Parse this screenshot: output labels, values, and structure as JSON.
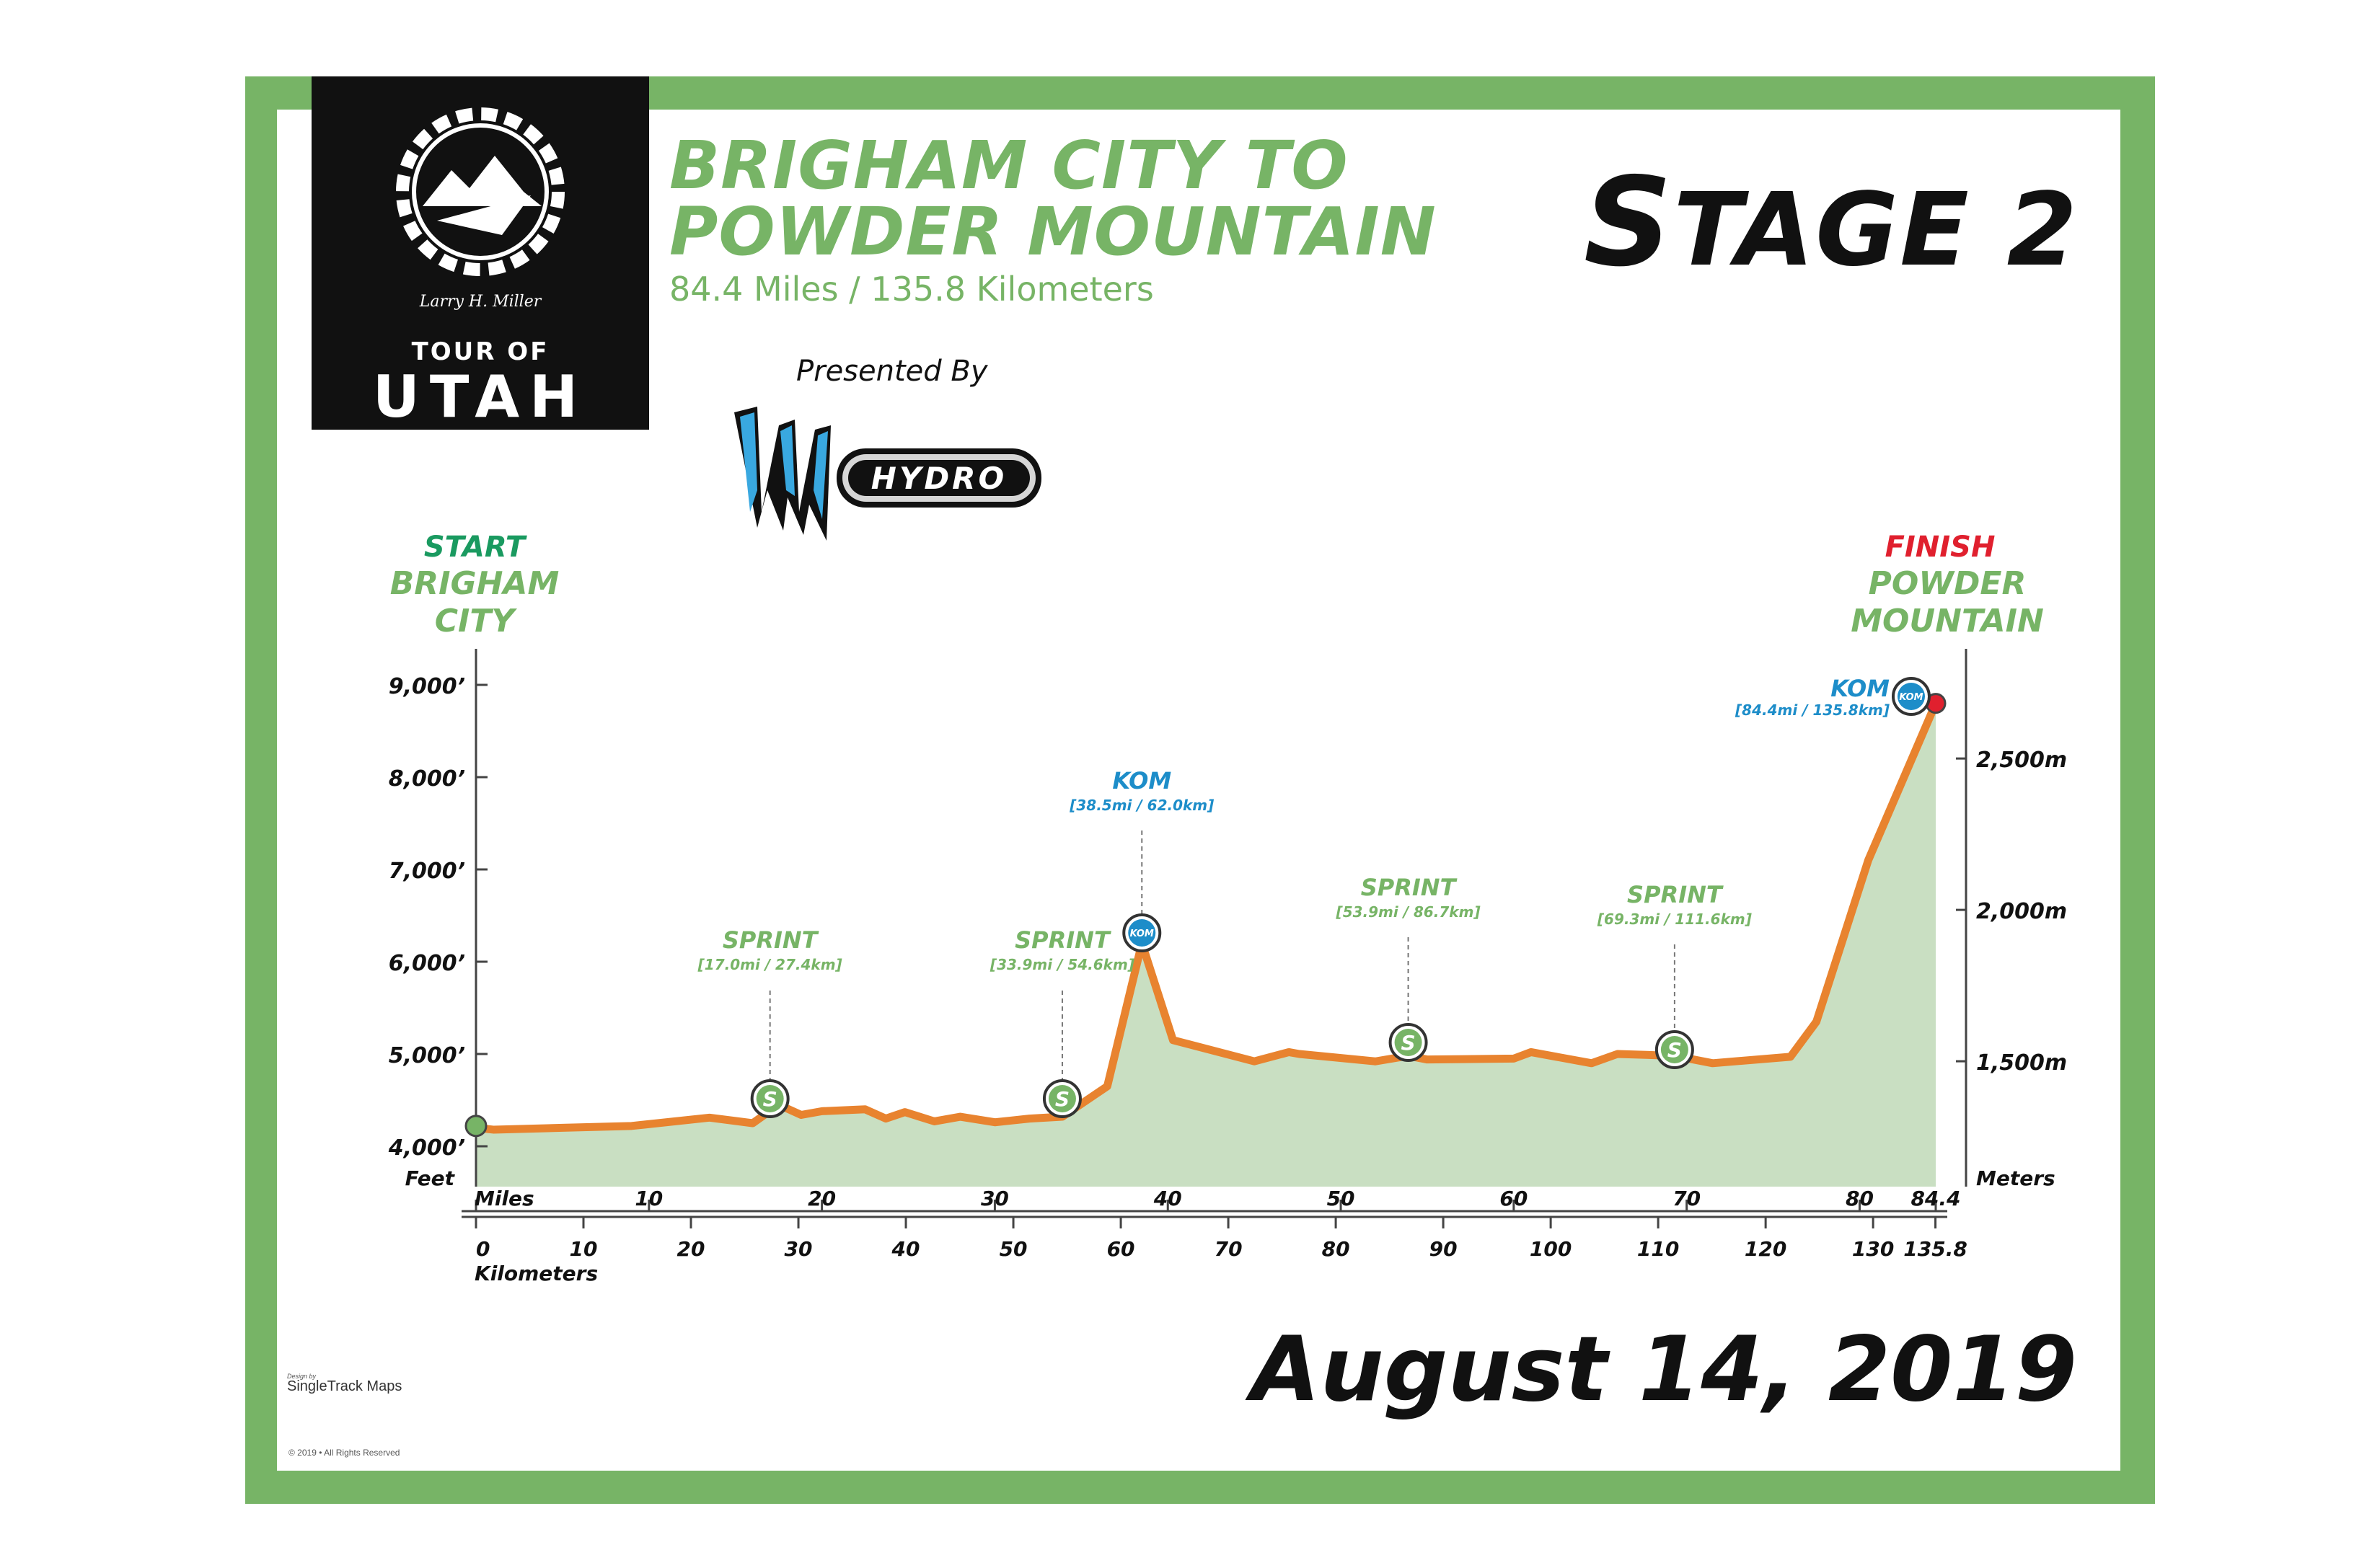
{
  "header": {
    "title_line1": "BRIGHAM CITY TO",
    "title_line2": "POWDER MOUNTAIN",
    "subtitle": "84.4 Miles / 135.8 Kilometers",
    "stage_first": "S",
    "stage_rest": "TAGE 2",
    "presented_by": "Presented By",
    "sponsor_text": "HYDRO",
    "date": "August 14, 2019"
  },
  "logo": {
    "tour_of": "TOUR OF",
    "utah": "UTAH",
    "signature": "Larry H. Miller"
  },
  "footer": {
    "design_by": "Design by",
    "credit": "SingleTrack Maps",
    "copyright": "© 2019 • All Rights Reserved"
  },
  "colors": {
    "frame": "#77b466",
    "profile_line": "#e8832f",
    "profile_fill": "#c9dfc2",
    "kom_blue": "#1d8dc9",
    "finish_red": "#e0202e",
    "start_green": "#1a9a60",
    "text_dark": "#111111"
  },
  "chart_data": {
    "type": "area",
    "xlabel": "Miles",
    "xlabel_secondary": "Kilometers",
    "ylabel": "Feet",
    "ylabel_secondary": "Meters",
    "xlim": [
      0,
      84.4
    ],
    "ylim": [
      3800,
      9500
    ],
    "x_ticks_miles": [
      "0",
      "10",
      "20",
      "30",
      "40",
      "50",
      "60",
      "70",
      "80",
      "84.4"
    ],
    "x_tick_values_miles": [
      0,
      10,
      20,
      30,
      40,
      50,
      60,
      70,
      80,
      84.4
    ],
    "x_ticks_km": [
      "0",
      "10",
      "20",
      "30",
      "40",
      "50",
      "60",
      "70",
      "80",
      "90",
      "100",
      "110",
      "120",
      "130",
      "135.8"
    ],
    "x_tick_values_km": [
      0,
      10,
      20,
      30,
      40,
      50,
      60,
      70,
      80,
      90,
      100,
      110,
      120,
      130,
      135.8
    ],
    "y_ticks_feet": [
      "4,000’",
      "5,000’",
      "6,000’",
      "7,000’",
      "8,000’",
      "9,000’"
    ],
    "y_tick_values_feet": [
      4000,
      5000,
      6000,
      7000,
      8000,
      9000
    ],
    "y_ticks_meters": [
      "1,500m",
      "2,000m",
      "2,500m"
    ],
    "y_tick_values_meters": [
      1500,
      2000,
      2500
    ],
    "series": [
      {
        "x": [
          0,
          1,
          5,
          9,
          13.5,
          16,
          17.5,
          18.8,
          20,
          22.5,
          23.7,
          24.8,
          26.5,
          28,
          30,
          32,
          33.9,
          36.5,
          38.5,
          40.3,
          45,
          47,
          47.6,
          52,
          53.9,
          55,
          60,
          61,
          64.5,
          66,
          69.3,
          71.5,
          76,
          77.5,
          80.5,
          84.4
        ],
        "y": [
          4200,
          4180,
          4200,
          4220,
          4310,
          4250,
          4450,
          4340,
          4380,
          4400,
          4300,
          4370,
          4270,
          4320,
          4260,
          4300,
          4320,
          4650,
          6200,
          5150,
          4920,
          5020,
          5000,
          4920,
          4980,
          4940,
          4950,
          5020,
          4900,
          5000,
          4980,
          4900,
          4970,
          5350,
          7100,
          8800
        ]
      }
    ],
    "start": {
      "line1": "START",
      "line2": "BRIGHAM",
      "line3": "CITY",
      "x": 0,
      "y": 4220
    },
    "finish": {
      "line1": "FINISH",
      "line2": "POWDER",
      "line3": "MOUNTAIN",
      "x": 84.4,
      "y": 8800
    },
    "annotations": [
      {
        "type": "sprint",
        "label": "SPRINT",
        "detail": "[17.0mi / 27.4km]",
        "x": 17.0,
        "y": 4450,
        "icon": "S"
      },
      {
        "type": "sprint",
        "label": "SPRINT",
        "detail": "[33.9mi / 54.6km]",
        "x": 33.9,
        "y": 4320,
        "icon": "S"
      },
      {
        "type": "kom",
        "label": "KOM",
        "detail": "[38.5mi / 62.0km]",
        "x": 38.5,
        "y": 6200,
        "icon": "KOM"
      },
      {
        "type": "sprint",
        "label": "SPRINT",
        "detail": "[53.9mi / 86.7km]",
        "x": 53.9,
        "y": 4980,
        "icon": "S"
      },
      {
        "type": "sprint",
        "label": "SPRINT",
        "detail": "[69.3mi / 111.6km]",
        "x": 69.3,
        "y": 4980,
        "icon": "S"
      },
      {
        "type": "kom",
        "label": "KOM",
        "detail": "[84.4mi / 135.8km]",
        "x": 84.4,
        "y": 8800,
        "icon": "KOM"
      }
    ]
  }
}
